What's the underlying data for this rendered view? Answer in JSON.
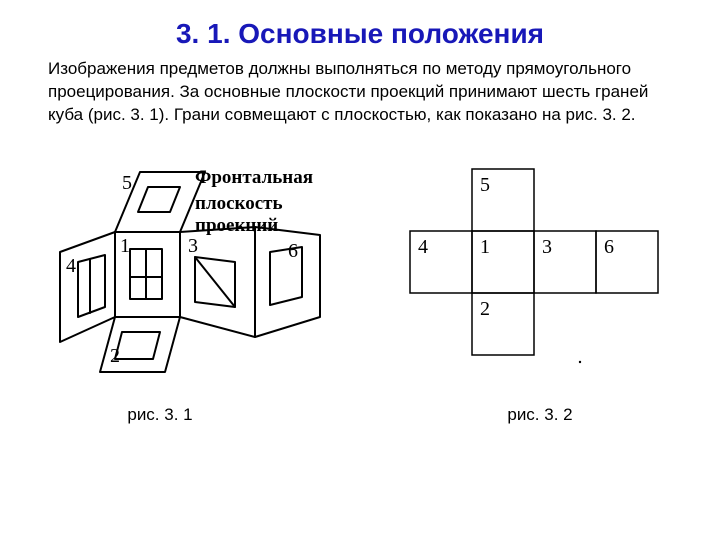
{
  "title": "3. 1. Основные положения",
  "body": "Изображения предметов должны выполняться по методу прямоугольного проецирования. За основные плоскости проекций принимают шесть граней куба (рис. 3. 1). Грани совмещают с плоскостью, как показано на рис. 3. 2.",
  "fig1": {
    "label_top": "Фронтальная",
    "label_bottom": "плоскость проекций",
    "caption": "рис. 3. 1",
    "face_labels": [
      "1",
      "2",
      "3",
      "4",
      "5",
      "6"
    ],
    "stroke": "#000000",
    "stroke_width": 2,
    "fill": "#ffffff"
  },
  "fig2": {
    "caption": "рис. 3. 2",
    "face_labels": [
      "1",
      "2",
      "3",
      "4",
      "5",
      "6"
    ],
    "stroke": "#000000",
    "stroke_width": 1.5,
    "cell_size": 62,
    "cross_layout": {
      "positions": {
        "5": [
          1,
          0
        ],
        "4": [
          0,
          1
        ],
        "1": [
          1,
          1
        ],
        "3": [
          2,
          1
        ],
        "6": [
          3,
          1
        ],
        "2": [
          1,
          2
        ]
      }
    }
  },
  "colors": {
    "title": "#1818b8",
    "text": "#000000",
    "background": "#ffffff"
  },
  "fonts": {
    "title_size": 28,
    "body_size": 17,
    "caption_size": 17,
    "diagram_label_size": 19
  }
}
